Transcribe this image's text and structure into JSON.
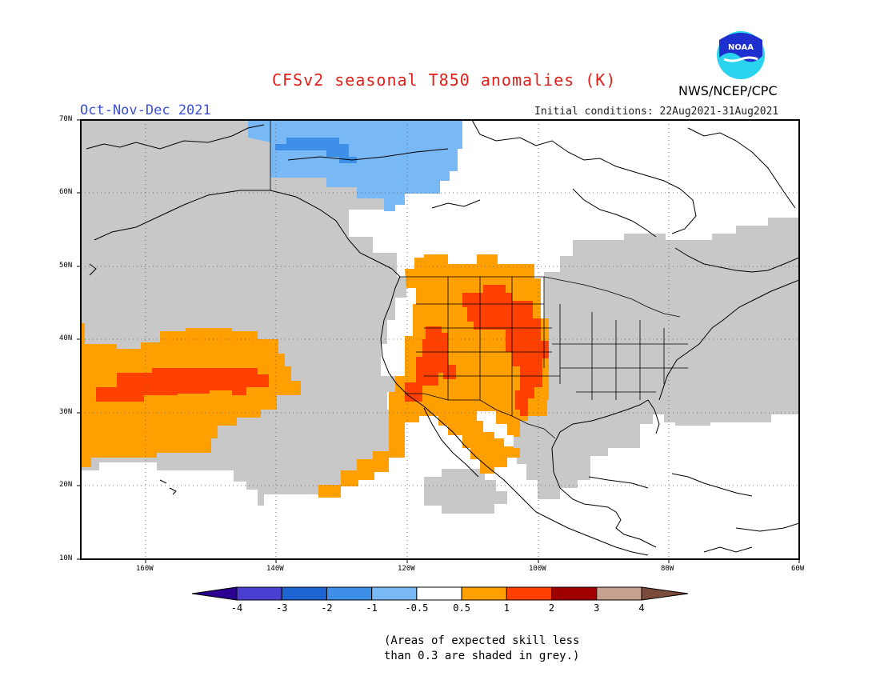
{
  "title": "CFSv2 seasonal T850 anomalies (K)",
  "season": "Oct-Nov-Dec 2021",
  "initial_conditions": "Initial conditions: 22Aug2021-31Aug2021",
  "agency": "NWS/NCEP/CPC",
  "logo": {
    "text": "NOAA",
    "icon": "noaa-logo-icon"
  },
  "latitude_labels": [
    "70N",
    "60N",
    "50N",
    "40N",
    "30N",
    "20N",
    "10N"
  ],
  "longitude_labels": [
    "160W",
    "140W",
    "120W",
    "100W",
    "80W",
    "60W"
  ],
  "colorbar": {
    "labels": [
      "-4",
      "-3",
      "-2",
      "-1",
      "-0.5",
      "0.5",
      "1",
      "2",
      "3",
      "4"
    ],
    "colors": [
      "#2b0090",
      "#4a3fd0",
      "#1e64d2",
      "#3d8fe8",
      "#78b8f5",
      "#ffffff",
      "#ff9f00",
      "#ff4000",
      "#a00000",
      "#c8a090",
      "#7a4a3a"
    ]
  },
  "note": {
    "line1": "(Areas of expected skill less",
    "line2": "than 0.3 are shaded in grey.)"
  },
  "colors": {
    "grey": "#c8c8c8",
    "orange": "#ff9f00",
    "red": "#ff4000",
    "light_blue": "#78b8f5",
    "blue": "#3d8fe8"
  }
}
